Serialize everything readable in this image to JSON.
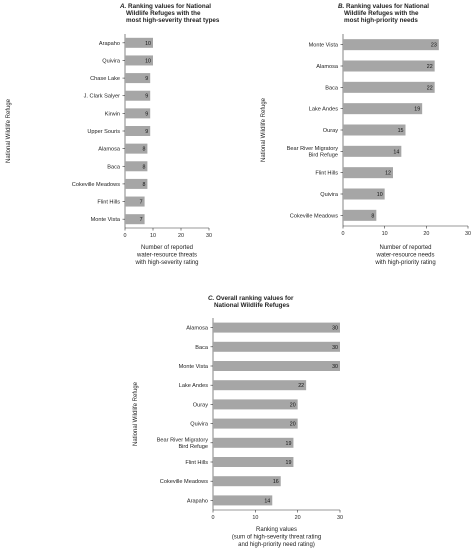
{
  "chart_data": [
    {
      "panel": "A.",
      "title_lines": [
        "Ranking values for National",
        "Wildlife Refuges with the",
        "most high-severity threat types"
      ],
      "type": "bar",
      "orientation": "horizontal",
      "ylabel": "National Wildlife Refuge",
      "xlabel_lines": [
        "Number of reported",
        "water-resource threats",
        "with high-severity rating"
      ],
      "xlim": [
        0,
        30
      ],
      "xticks": [
        "0",
        "10",
        "20",
        "30"
      ],
      "categories": [
        [
          "Arapaho"
        ],
        [
          "Quivira"
        ],
        [
          "Chase Lake"
        ],
        [
          "J. Clark Salyer"
        ],
        [
          "Kirwin"
        ],
        [
          "Upper Souris"
        ],
        [
          "Alamosa"
        ],
        [
          "Baca"
        ],
        [
          "Cokeville Meadows"
        ],
        [
          "Flint Hills"
        ],
        [
          "Monte Vista"
        ]
      ],
      "values": [
        10,
        10,
        9,
        9,
        9,
        9,
        8,
        8,
        8,
        7,
        7
      ],
      "value_labels": [
        "10",
        "10",
        "9",
        "9",
        "9",
        "9",
        "8",
        "8",
        "8",
        "7",
        "7"
      ]
    },
    {
      "panel": "B.",
      "title_lines": [
        "Ranking values for National",
        "Wildlife Refuges with the",
        "most high-priority needs"
      ],
      "type": "bar",
      "orientation": "horizontal",
      "ylabel": "National Wildlife Refuge",
      "xlabel_lines": [
        "Number of reported",
        "water-resource needs",
        "with high-priority rating"
      ],
      "xlim": [
        0,
        30
      ],
      "xticks": [
        "0",
        "10",
        "20",
        "30"
      ],
      "categories": [
        [
          "Monte Vista"
        ],
        [
          "Alamosa"
        ],
        [
          "Baca"
        ],
        [
          "Lake Andes"
        ],
        [
          "Ouray"
        ],
        [
          "Bear River Migratory",
          "Bird Refuge"
        ],
        [
          "Flint Hills"
        ],
        [
          "Quivira"
        ],
        [
          "Cokeville Meadows"
        ]
      ],
      "values": [
        23,
        22,
        22,
        19,
        15,
        14,
        12,
        10,
        8
      ],
      "value_labels": [
        "23",
        "22",
        "22",
        "19",
        "15",
        "14",
        "12",
        "10",
        "8"
      ]
    },
    {
      "panel": "C.",
      "title_lines": [
        "Overall ranking values for",
        "National Wildlife Refuges"
      ],
      "type": "bar",
      "orientation": "horizontal",
      "ylabel": "National Wildlife Refuge",
      "xlabel_lines": [
        "Ranking values",
        "(sum of high-severity threat rating",
        "and high-priority need rating)"
      ],
      "xlim": [
        0,
        30
      ],
      "xticks": [
        "0",
        "10",
        "20",
        "30"
      ],
      "categories": [
        [
          "Alamosa"
        ],
        [
          "Baca"
        ],
        [
          "Monte Vista"
        ],
        [
          "Lake Andes"
        ],
        [
          "Ouray"
        ],
        [
          "Quivira"
        ],
        [
          "Bear River Migratory",
          "Bird Refuge"
        ],
        [
          "Flint Hills"
        ],
        [
          "Cokeville Meadows"
        ],
        [
          "Arapaho"
        ]
      ],
      "values": [
        30,
        30,
        30,
        22,
        20,
        20,
        19,
        19,
        16,
        14
      ],
      "value_labels": [
        "30",
        "30",
        "30",
        "22",
        "20",
        "20",
        "19",
        "19",
        "16",
        "14"
      ]
    }
  ]
}
